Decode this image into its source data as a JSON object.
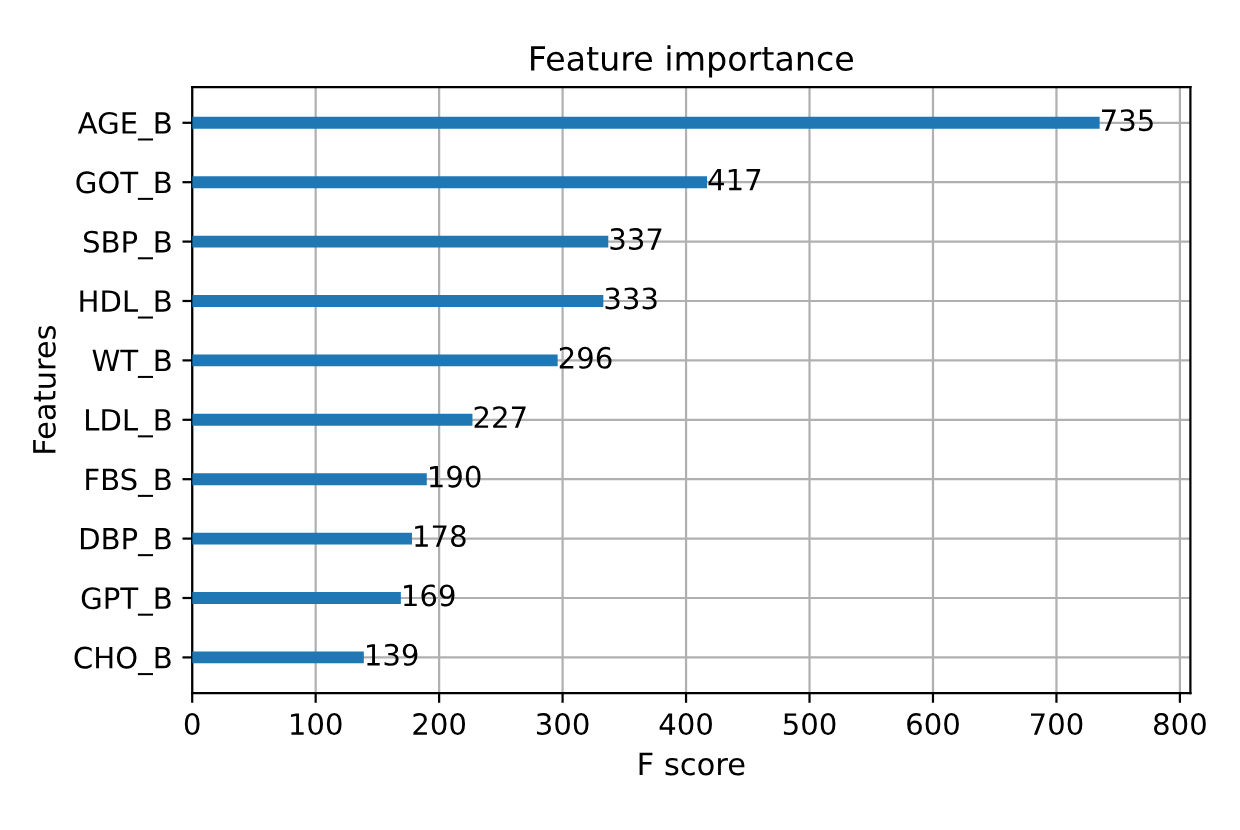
{
  "chart_data": {
    "type": "bar",
    "orientation": "horizontal",
    "title": "Feature importance",
    "xlabel": "F score",
    "ylabel": "Features",
    "categories": [
      "AGE_B",
      "GOT_B",
      "SBP_B",
      "HDL_B",
      "WT_B",
      "LDL_B",
      "FBS_B",
      "DBP_B",
      "GPT_B",
      "CHO_B"
    ],
    "values": [
      735,
      417,
      337,
      333,
      296,
      227,
      190,
      178,
      169,
      139
    ],
    "color": "#1f77b4",
    "xlim": [
      0,
      808.5
    ],
    "xticks": [
      0,
      100,
      200,
      300,
      400,
      500,
      600,
      700,
      800
    ],
    "grid": true,
    "data_labels": true
  }
}
